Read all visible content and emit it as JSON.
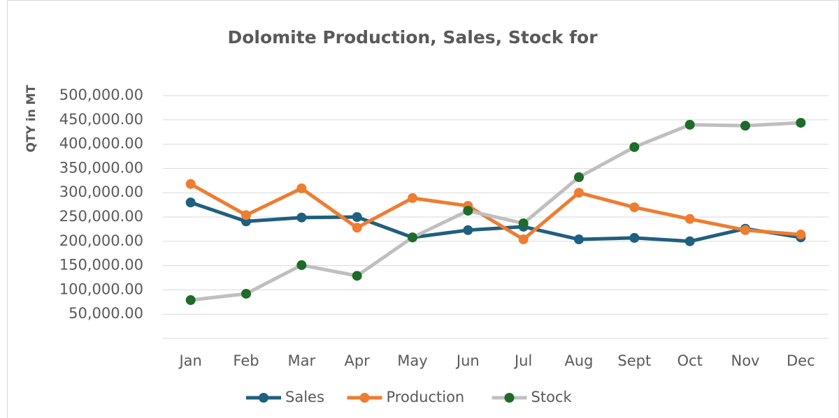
{
  "chart_data": {
    "type": "line",
    "title": "Dolomite Production, Sales, Stock for",
    "y_label": "QTY in MT",
    "categories": [
      "Jan",
      "Feb",
      "Mar",
      "Apr",
      "May",
      "Jun",
      "Jul",
      "Aug",
      "Sept",
      "Oct",
      "Nov",
      "Dec"
    ],
    "series": [
      {
        "name": "Sales",
        "color": "#1f5f7f",
        "values": [
          280000,
          241000,
          249000,
          250000,
          208000,
          223000,
          230000,
          204000,
          207000,
          200000,
          226000,
          208000
        ]
      },
      {
        "name": "Production",
        "color": "#ed7d31",
        "values": [
          318000,
          254000,
          309000,
          228000,
          289000,
          273000,
          204000,
          300000,
          270000,
          246000,
          223000,
          214000
        ]
      },
      {
        "name": "Stock",
        "color": "#bfbfbf",
        "marker_color": "#1e6b2a",
        "values": [
          79000,
          92000,
          151000,
          129000,
          208000,
          263000,
          237000,
          332000,
          394000,
          440000,
          438000,
          444000
        ]
      }
    ],
    "ylim": [
      0,
      500000
    ],
    "yticks": [
      {
        "value": 50000,
        "label": "50,000.00"
      },
      {
        "value": 100000,
        "label": "100,000.00"
      },
      {
        "value": 150000,
        "label": "150,000.00"
      },
      {
        "value": 200000,
        "label": "200,000.00"
      },
      {
        "value": 250000,
        "label": "250,000.00"
      },
      {
        "value": 300000,
        "label": "300,000.00"
      },
      {
        "value": 350000,
        "label": "350,000.00"
      },
      {
        "value": 400000,
        "label": "400,000.00"
      },
      {
        "value": 450000,
        "label": "450,000.00"
      },
      {
        "value": 500000,
        "label": "500,000.00"
      }
    ],
    "grid": true,
    "legend": "bottom"
  }
}
